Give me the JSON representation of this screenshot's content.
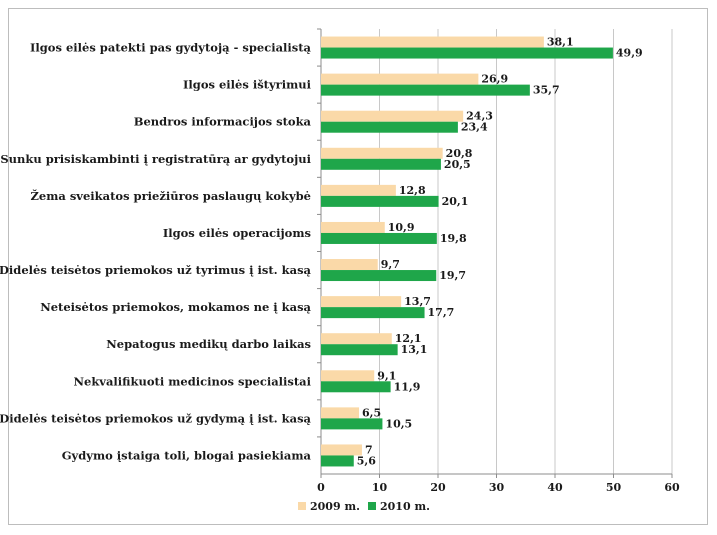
{
  "chart_data": {
    "type": "bar",
    "orientation": "horizontal",
    "title": "",
    "xlabel": "",
    "ylabel": "",
    "xlim": [
      0,
      60
    ],
    "ticks": [
      0,
      10,
      20,
      30,
      40,
      50,
      60
    ],
    "grid": true,
    "legend_position": "bottom",
    "categories": [
      "Ilgos eilės patekti pas gydytoją - specialistą",
      "Ilgos eilės ištyrimui",
      "Bendros informacijos stoka",
      "Sunku prisiskambinti į registratūrą ar gydytojui",
      "Žema sveikatos priežiūros paslaugų kokybė",
      "Ilgos eilės operacijoms",
      "Didelės teisėtos priemokos už tyrimus į ist. kasą",
      "Neteisėtos priemokos, mokamos ne į kasą",
      "Nepatogus medikų darbo laikas",
      "Nekvalifikuoti medicinos specialistai",
      "Didelės teisėtos priemokos už gydymą į ist. kasą",
      "Gydymo įstaiga toli, blogai pasiekiama"
    ],
    "series": [
      {
        "name": "2009 m.",
        "color": "#fad9a8",
        "values": [
          38.1,
          26.9,
          24.3,
          20.8,
          12.8,
          10.9,
          9.7,
          13.7,
          12.1,
          9.1,
          6.5,
          7
        ],
        "labels": [
          "38,1",
          "26,9",
          "24,3",
          "20,8",
          "12,8",
          "10,9",
          "9,7",
          "13,7",
          "12,1",
          "9,1",
          "6,5",
          "7"
        ]
      },
      {
        "name": "2010 m.",
        "color": "#1fa64a",
        "values": [
          49.9,
          35.7,
          23.4,
          20.5,
          20.1,
          19.8,
          19.7,
          17.7,
          13.1,
          11.9,
          10.5,
          5.6
        ],
        "labels": [
          "49,9",
          "35,7",
          "23,4",
          "20,5",
          "20,1",
          "19,8",
          "19,7",
          "17,7",
          "13,1",
          "11,9",
          "10,5",
          "5,6"
        ]
      }
    ]
  }
}
